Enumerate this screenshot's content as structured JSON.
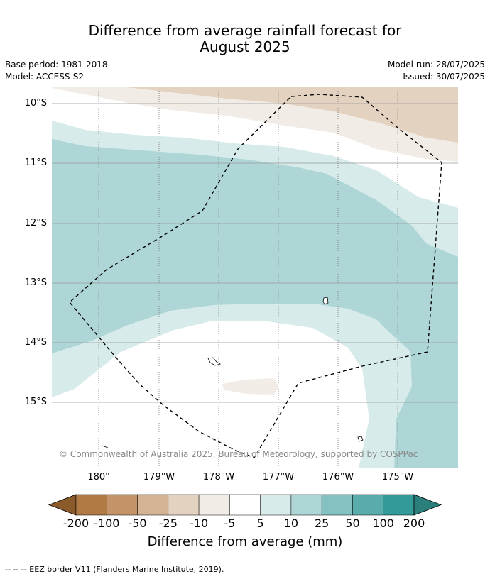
{
  "title_line1": "Difference from average rainfall forecast for",
  "title_line2": "August 2025",
  "base_period": "Base period: 1981-2018",
  "model": "Model: ACCESS-S2",
  "model_run": "Model run: 28/07/2025",
  "issued": "Issued: 30/07/2025",
  "latitudes": [
    "10°S",
    "11°S",
    "12°S",
    "13°S",
    "14°S",
    "15°S"
  ],
  "longitudes": [
    "180°",
    "179°W",
    "178°W",
    "177°W",
    "176°W",
    "175°W"
  ],
  "copyright": "© Commonwealth of Australia 2025, Bureau of Meteorology, supported by COSPPac",
  "colorbar": {
    "ticks": [
      "-200",
      "-100",
      "-50",
      "-25",
      "-10",
      "-5",
      "5",
      "10",
      "25",
      "50",
      "100",
      "200"
    ],
    "colors": [
      "#8a5a2b",
      "#b07a45",
      "#c29468",
      "#d4b394",
      "#e4d2c1",
      "#f1ece5",
      "#ffffff",
      "#d7ebea",
      "#aed6d6",
      "#86c1c1",
      "#5aacac",
      "#339a98",
      "#2a7f7d"
    ],
    "label": "Difference from average (mm)"
  },
  "legend_note": "-- -- -- EEZ border V11 (Flanders Marine Institute, 2019)."
}
